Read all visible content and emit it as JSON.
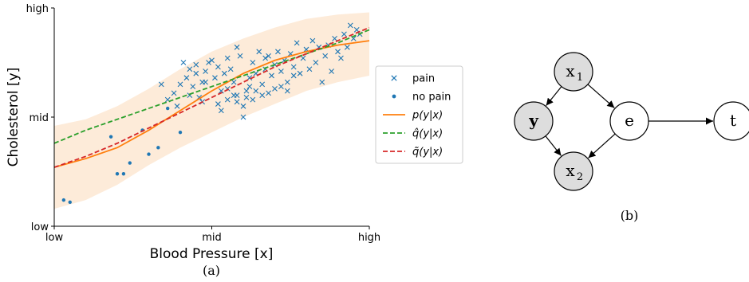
{
  "chart_data": [
    {
      "type": "scatter",
      "panel_label": "(a)",
      "xlabel": "Blood Pressure [x]",
      "ylabel": "Cholesterol [y]",
      "x_ticks": [
        "low",
        "mid",
        "high"
      ],
      "y_ticks": [
        "low",
        "mid",
        "high"
      ],
      "xlim": [
        0,
        1
      ],
      "ylim": [
        0,
        1
      ],
      "grid": false,
      "legend_position": "right",
      "band": {
        "color": "#fdebd9",
        "x": [
          0.0,
          0.1,
          0.2,
          0.3,
          0.4,
          0.5,
          0.6,
          0.7,
          0.8,
          0.9,
          1.0
        ],
        "lower": [
          0.08,
          0.12,
          0.19,
          0.28,
          0.36,
          0.43,
          0.5,
          0.56,
          0.62,
          0.66,
          0.69
        ],
        "upper": [
          0.46,
          0.49,
          0.55,
          0.63,
          0.72,
          0.8,
          0.86,
          0.91,
          0.95,
          0.97,
          0.98
        ]
      },
      "series": [
        {
          "name": "pain",
          "marker": "x",
          "color": "#1f77b4",
          "points": [
            [
              0.34,
              0.65
            ],
            [
              0.38,
              0.61
            ],
            [
              0.4,
              0.65
            ],
            [
              0.41,
              0.75
            ],
            [
              0.42,
              0.68
            ],
            [
              0.43,
              0.72
            ],
            [
              0.44,
              0.64
            ],
            [
              0.45,
              0.7
            ],
            [
              0.46,
              0.59
            ],
            [
              0.47,
              0.66
            ],
            [
              0.48,
              0.71
            ],
            [
              0.49,
              0.75
            ],
            [
              0.5,
              0.76
            ],
            [
              0.51,
              0.68
            ],
            [
              0.52,
              0.73
            ],
            [
              0.53,
              0.62
            ],
            [
              0.54,
              0.7
            ],
            [
              0.55,
              0.77
            ],
            [
              0.56,
              0.72
            ],
            [
              0.57,
              0.6
            ],
            [
              0.58,
              0.82
            ],
            [
              0.59,
              0.78
            ],
            [
              0.6,
              0.55
            ],
            [
              0.61,
              0.62
            ],
            [
              0.62,
              0.68
            ],
            [
              0.63,
              0.75
            ],
            [
              0.64,
              0.7
            ],
            [
              0.65,
              0.8
            ],
            [
              0.66,
              0.65
            ],
            [
              0.67,
              0.72
            ],
            [
              0.68,
              0.78
            ],
            [
              0.69,
              0.69
            ],
            [
              0.7,
              0.74
            ],
            [
              0.71,
              0.8
            ],
            [
              0.72,
              0.71
            ],
            [
              0.73,
              0.76
            ],
            [
              0.74,
              0.66
            ],
            [
              0.75,
              0.79
            ],
            [
              0.76,
              0.73
            ],
            [
              0.77,
              0.84
            ],
            [
              0.78,
              0.7
            ],
            [
              0.79,
              0.77
            ],
            [
              0.8,
              0.81
            ],
            [
              0.81,
              0.72
            ],
            [
              0.82,
              0.85
            ],
            [
              0.83,
              0.75
            ],
            [
              0.84,
              0.82
            ],
            [
              0.85,
              0.66
            ],
            [
              0.86,
              0.78
            ],
            [
              0.87,
              0.83
            ],
            [
              0.88,
              0.71
            ],
            [
              0.89,
              0.86
            ],
            [
              0.9,
              0.8
            ],
            [
              0.91,
              0.77
            ],
            [
              0.92,
              0.88
            ],
            [
              0.93,
              0.82
            ],
            [
              0.94,
              0.92
            ],
            [
              0.95,
              0.86
            ],
            [
              0.96,
              0.9
            ],
            [
              0.97,
              0.88
            ],
            [
              0.52,
              0.56
            ],
            [
              0.55,
              0.58
            ],
            [
              0.58,
              0.57
            ],
            [
              0.6,
              0.5
            ],
            [
              0.63,
              0.58
            ],
            [
              0.66,
              0.6
            ],
            [
              0.62,
              0.64
            ],
            [
              0.57,
              0.66
            ],
            [
              0.7,
              0.63
            ],
            [
              0.74,
              0.62
            ],
            [
              0.48,
              0.66
            ],
            [
              0.45,
              0.74
            ],
            [
              0.36,
              0.58
            ],
            [
              0.39,
              0.55
            ],
            [
              0.43,
              0.6
            ],
            [
              0.47,
              0.57
            ],
            [
              0.53,
              0.53
            ],
            [
              0.61,
              0.59
            ],
            [
              0.64,
              0.62
            ],
            [
              0.68,
              0.61
            ],
            [
              0.72,
              0.64
            ],
            [
              0.67,
              0.77
            ],
            [
              0.76,
              0.69
            ],
            [
              0.58,
              0.6
            ],
            [
              0.55,
              0.63
            ]
          ]
        },
        {
          "name": "no pain",
          "marker": "dot",
          "color": "#1f77b4",
          "points": [
            [
              0.03,
              0.12
            ],
            [
              0.05,
              0.11
            ],
            [
              0.18,
              0.41
            ],
            [
              0.2,
              0.24
            ],
            [
              0.22,
              0.24
            ],
            [
              0.24,
              0.29
            ],
            [
              0.28,
              0.44
            ],
            [
              0.33,
              0.36
            ],
            [
              0.36,
              0.54
            ],
            [
              0.4,
              0.43
            ],
            [
              0.3,
              0.33
            ]
          ]
        },
        {
          "name": "p(y|x)",
          "type": "line",
          "style": "solid",
          "color": "#ff7f0e",
          "x": [
            0.0,
            0.1,
            0.2,
            0.3,
            0.4,
            0.5,
            0.6,
            0.7,
            0.8,
            0.9,
            1.0
          ],
          "y": [
            0.27,
            0.31,
            0.36,
            0.44,
            0.53,
            0.62,
            0.7,
            0.76,
            0.8,
            0.83,
            0.85
          ]
        },
        {
          "name": "q̂(y|x)",
          "type": "line",
          "style": "dashed",
          "color": "#2ca02c",
          "x": [
            0.0,
            0.1,
            0.2,
            0.3,
            0.4,
            0.5,
            0.6,
            0.7,
            0.8,
            0.9,
            1.0
          ],
          "y": [
            0.38,
            0.44,
            0.49,
            0.54,
            0.59,
            0.64,
            0.69,
            0.74,
            0.79,
            0.84,
            0.9
          ]
        },
        {
          "name": "q̃(y|x)",
          "type": "line",
          "style": "dashed",
          "color": "#d62728",
          "x": [
            0.0,
            0.1,
            0.2,
            0.3,
            0.4,
            0.5,
            0.6,
            0.7,
            0.8,
            0.9,
            1.0
          ],
          "y": [
            0.27,
            0.32,
            0.38,
            0.45,
            0.52,
            0.59,
            0.66,
            0.73,
            0.79,
            0.85,
            0.91
          ]
        }
      ]
    },
    {
      "type": "diagram",
      "panel_label": "(b)",
      "nodes": [
        {
          "id": "x1",
          "label": "x",
          "sub": "1",
          "shaded": true
        },
        {
          "id": "y",
          "label": "y",
          "sub": "",
          "shaded": true
        },
        {
          "id": "e",
          "label": "e",
          "sub": "",
          "shaded": false
        },
        {
          "id": "x2",
          "label": "x",
          "sub": "2",
          "shaded": true
        },
        {
          "id": "t",
          "label": "t",
          "sub": "",
          "shaded": false
        }
      ],
      "edges": [
        {
          "from": "x1",
          "to": "y"
        },
        {
          "from": "x1",
          "to": "e"
        },
        {
          "from": "y",
          "to": "x2"
        },
        {
          "from": "e",
          "to": "x2"
        },
        {
          "from": "e",
          "to": "t"
        }
      ]
    }
  ]
}
